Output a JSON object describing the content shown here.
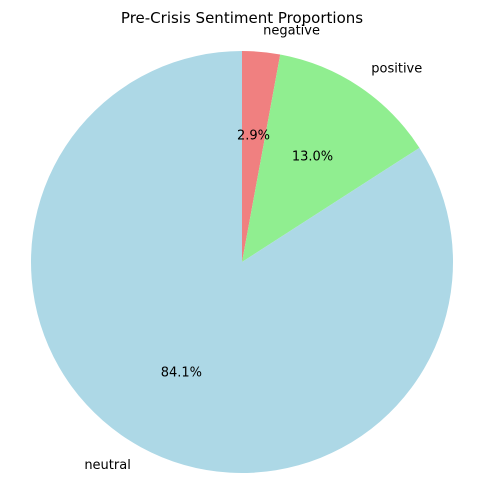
{
  "chart_data": {
    "type": "pie",
    "title": "Pre-Crisis Sentiment Proportions",
    "start_angle_deg": 90,
    "direction": "clockwise",
    "slices": [
      {
        "label": "negative",
        "value": 2.9,
        "pct_label": "2.9%",
        "color": "#f08080"
      },
      {
        "label": "positive",
        "value": 13.0,
        "pct_label": "13.0%",
        "color": "#90ee90"
      },
      {
        "label": "neutral",
        "value": 84.1,
        "pct_label": "84.1%",
        "color": "#add8e6"
      }
    ]
  }
}
